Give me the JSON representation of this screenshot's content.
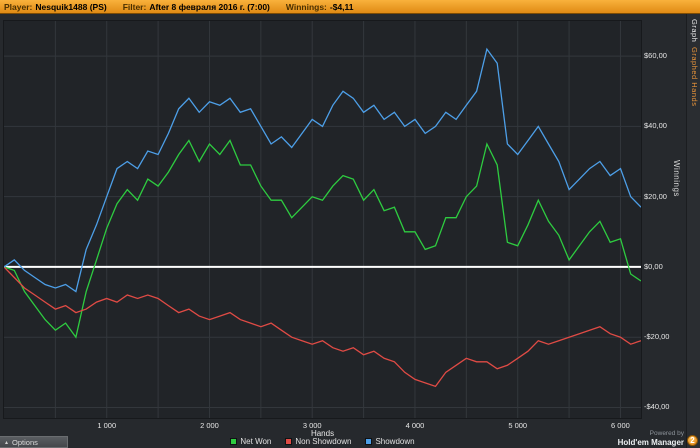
{
  "header": {
    "player_label": "Player:",
    "player_value": "Nesquik1488 (PS)",
    "filter_label": "Filter:",
    "filter_value": "After 8 февраля 2016 г. (7:00)",
    "winnings_label": "Winnings:",
    "winnings_value": "-$4,11"
  },
  "tabs": [
    {
      "label": "Graph",
      "active": true
    },
    {
      "label": "Graphed Hands",
      "active": false
    }
  ],
  "status_bar": {
    "options_label": "Options",
    "options_arrow": "▴"
  },
  "footer": {
    "powered_by": "Powered by",
    "brand": "Hold'em Manager",
    "brand_badge": "2"
  },
  "chart_data": {
    "type": "line",
    "title": "",
    "xlabel": "Hands",
    "ylabel": "Winnings",
    "xlim": [
      0,
      6200
    ],
    "ylim": [
      -43,
      70
    ],
    "x_ticks": [
      1000,
      2000,
      3000,
      4000,
      5000,
      6000
    ],
    "x_tick_labels": [
      "1 000",
      "2 000",
      "3 000",
      "4 000",
      "5 000",
      "6 000"
    ],
    "y_ticks": [
      60,
      40,
      20,
      0,
      -20,
      -40
    ],
    "y_tick_labels": [
      "$60,00",
      "$40,00",
      "$20,00",
      "$0,00",
      "-$20,00",
      "-$40,00"
    ],
    "grid": true,
    "grid_step_x": 500,
    "grid_color": "#33373c",
    "zero_line_color": "#ffffff",
    "legend_position": "bottom",
    "x": [
      0,
      100,
      200,
      300,
      400,
      500,
      600,
      700,
      800,
      900,
      1000,
      1100,
      1200,
      1300,
      1400,
      1500,
      1600,
      1700,
      1800,
      1900,
      2000,
      2100,
      2200,
      2300,
      2400,
      2500,
      2600,
      2700,
      2800,
      2900,
      3000,
      3100,
      3200,
      3300,
      3400,
      3500,
      3600,
      3700,
      3800,
      3900,
      4000,
      4100,
      4200,
      4300,
      4400,
      4500,
      4600,
      4700,
      4800,
      4900,
      5000,
      5100,
      5200,
      5300,
      5400,
      5500,
      5600,
      5700,
      5800,
      5900,
      6000,
      6100,
      6200
    ],
    "series": [
      {
        "name": "Net Won",
        "color": "#2ecc40",
        "values": [
          0,
          -1,
          -7,
          -11,
          -15,
          -18,
          -16,
          -20,
          -7,
          2,
          11,
          18,
          22,
          19,
          25,
          23,
          27,
          32,
          36,
          30,
          35,
          32,
          36,
          29,
          29,
          23,
          19,
          19,
          14,
          17,
          20,
          19,
          23,
          26,
          25,
          19,
          22,
          16,
          17,
          10,
          10,
          5,
          6,
          14,
          14,
          20,
          23,
          35,
          29,
          7,
          6,
          12,
          19,
          13,
          9,
          2,
          6,
          10,
          13,
          7,
          8,
          -2,
          -4
        ]
      },
      {
        "name": "Non Showdown",
        "color": "#e04b45",
        "values": [
          0,
          -3,
          -6,
          -8,
          -10,
          -12,
          -11,
          -13,
          -12,
          -10,
          -9,
          -10,
          -8,
          -9,
          -8,
          -9,
          -11,
          -13,
          -12,
          -14,
          -15,
          -14,
          -13,
          -15,
          -16,
          -17,
          -16,
          -18,
          -20,
          -21,
          -22,
          -21,
          -23,
          -24,
          -23,
          -25,
          -24,
          -26,
          -27,
          -30,
          -32,
          -33,
          -34,
          -30,
          -28,
          -26,
          -27,
          -27,
          -29,
          -28,
          -26,
          -24,
          -21,
          -22,
          -21,
          -20,
          -19,
          -18,
          -17,
          -19,
          -20,
          -22,
          -21
        ]
      },
      {
        "name": "Showdown",
        "color": "#4d9fe8",
        "values": [
          0,
          2,
          -1,
          -3,
          -5,
          -6,
          -5,
          -7,
          5,
          12,
          20,
          28,
          30,
          28,
          33,
          32,
          38,
          45,
          48,
          44,
          47,
          46,
          48,
          44,
          45,
          40,
          35,
          37,
          34,
          38,
          42,
          40,
          46,
          50,
          48,
          44,
          46,
          42,
          44,
          40,
          42,
          38,
          40,
          44,
          42,
          46,
          50,
          62,
          58,
          35,
          32,
          36,
          40,
          35,
          30,
          22,
          25,
          28,
          30,
          26,
          28,
          20,
          17
        ]
      }
    ]
  }
}
